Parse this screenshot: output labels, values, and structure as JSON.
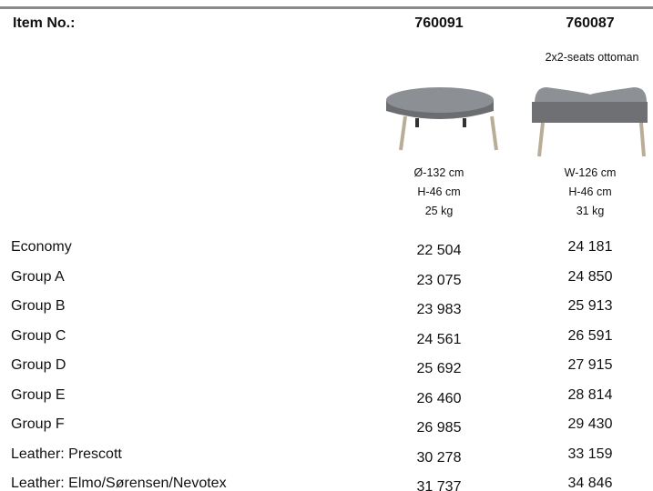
{
  "header_label": "Item No.:",
  "products": [
    {
      "item": "760091",
      "dimensions": [
        "Ø-132 cm",
        "H-46 cm",
        "25 kg"
      ]
    },
    {
      "item": "760087",
      "description": "2x2-seats ottoman",
      "dimensions": [
        "W-126 cm",
        "H-46 cm",
        "31 kg"
      ]
    }
  ],
  "rows": [
    {
      "label": "Economy",
      "prices": [
        "22 504",
        "24 181"
      ]
    },
    {
      "label": "Group A",
      "prices": [
        "23 075",
        "24 850"
      ]
    },
    {
      "label": "Group B",
      "prices": [
        "23 983",
        "25 913"
      ]
    },
    {
      "label": "Group C",
      "prices": [
        "24 561",
        "26 591"
      ]
    },
    {
      "label": "Group D",
      "prices": [
        "25 692",
        "27 915"
      ]
    },
    {
      "label": "Group E",
      "prices": [
        "26 460",
        "28 814"
      ]
    },
    {
      "label": "Group F",
      "prices": [
        "26 985",
        "29 430"
      ]
    },
    {
      "label": "Leather: Prescott",
      "prices": [
        "30 278",
        "33 159"
      ]
    },
    {
      "label": "Leather: Elmo/Sørensen/Nevotex",
      "prices": [
        "31 737",
        "34 846"
      ]
    }
  ]
}
